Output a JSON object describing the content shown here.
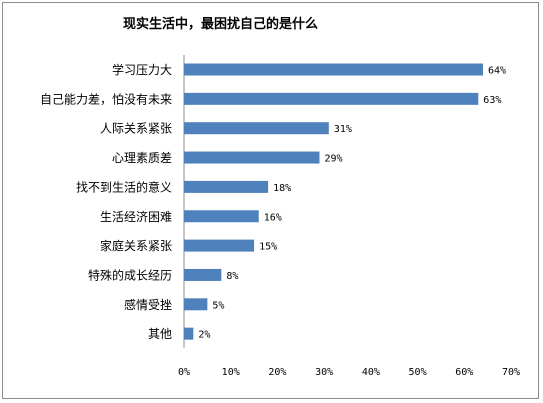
{
  "chart_data": {
    "type": "bar",
    "orientation": "horizontal",
    "title": "现实生活中，最困扰自己的是什么",
    "categories": [
      "学习压力大",
      "自己能力差，怕没有未来",
      "人际关系紧张",
      "心理素质差",
      "找不到生活的意义",
      "生活经济困难",
      "家庭关系紧张",
      "特殊的成长经历",
      "感情受挫",
      "其他"
    ],
    "values": [
      64,
      63,
      31,
      29,
      18,
      16,
      15,
      8,
      5,
      2
    ],
    "value_labels": [
      "64%",
      "63%",
      "31%",
      "29%",
      "18%",
      "16%",
      "15%",
      "8%",
      "5%",
      "2%"
    ],
    "xlim": [
      0,
      70
    ],
    "xticks": [
      "0%",
      "10%",
      "20%",
      "30%",
      "40%",
      "50%",
      "60%",
      "70%"
    ],
    "grid": false,
    "legend": "none",
    "bar_color": "#4f81bd"
  }
}
